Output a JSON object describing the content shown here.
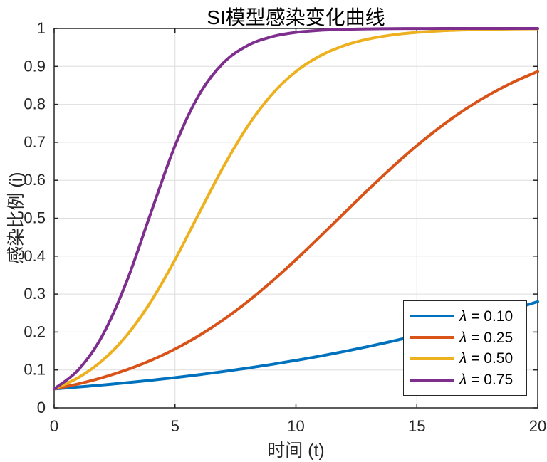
{
  "page": {
    "background": "#ffffff"
  },
  "chart_data": {
    "type": "line",
    "title": "SI模型感染变化曲线",
    "xlabel": "时间 (t)",
    "ylabel": "感染比例 (i)",
    "xlim": [
      0,
      20
    ],
    "ylim": [
      0,
      1
    ],
    "x_ticks": [
      0,
      5,
      10,
      15,
      20
    ],
    "x_tick_labels": [
      "0",
      "5",
      "10",
      "15",
      "20"
    ],
    "y_ticks": [
      0,
      0.1,
      0.2,
      0.3,
      0.4,
      0.5,
      0.6,
      0.7,
      0.8,
      0.9,
      1
    ],
    "y_tick_labels": [
      "0",
      "0.1",
      "0.2",
      "0.3",
      "0.4",
      "0.5",
      "0.6",
      "0.7",
      "0.8",
      "0.9",
      "1"
    ],
    "grid": true,
    "axis_color": "#262626",
    "grid_color": "#dedede",
    "tick_label_color": "#262626",
    "x": [
      0,
      1,
      2,
      3,
      4,
      5,
      6,
      7,
      8,
      9,
      10,
      11,
      12,
      13,
      14,
      15,
      16,
      17,
      18,
      19,
      20
    ],
    "series": [
      {
        "name": "λ = 0.10",
        "lambda": 0.1,
        "color": "#0072BD",
        "values": [
          0.05,
          0.055,
          0.0604,
          0.0663,
          0.0728,
          0.0798,
          0.0875,
          0.0958,
          0.1049,
          0.1146,
          0.1252,
          0.1365,
          0.1488,
          0.1619,
          0.1759,
          0.1909,
          0.2068,
          0.2237,
          0.2415,
          0.2603,
          0.28
        ]
      },
      {
        "name": "λ = 0.25",
        "lambda": 0.25,
        "color": "#D95319",
        "values": [
          0.05,
          0.0633,
          0.0798,
          0.1003,
          0.1252,
          0.1552,
          0.1909,
          0.2325,
          0.28,
          0.333,
          0.3907,
          0.4515,
          0.5139,
          0.5758,
          0.6354,
          0.6912,
          0.7418,
          0.7868,
          0.8257,
          0.8588,
          0.8865
        ]
      },
      {
        "name": "λ = 0.50",
        "lambda": 0.5,
        "color": "#EDB120",
        "values": [
          0.05,
          0.0798,
          0.1252,
          0.1909,
          0.28,
          0.3907,
          0.5139,
          0.6354,
          0.7418,
          0.8257,
          0.8865,
          0.9279,
          0.955,
          0.9722,
          0.983,
          0.9896,
          0.9937,
          0.9961,
          0.9977,
          0.9986,
          0.9991
        ]
      },
      {
        "name": "λ = 0.75",
        "lambda": 0.75,
        "color": "#7E2F8E",
        "values": [
          0.05,
          0.1003,
          0.1909,
          0.333,
          0.5139,
          0.6912,
          0.8257,
          0.9093,
          0.955,
          0.9782,
          0.9896,
          0.9951,
          0.9977,
          0.9989,
          0.9995,
          0.9998,
          0.9999,
          0.9999,
          1,
          1,
          1
        ]
      }
    ],
    "legend": {
      "position": "lower-right",
      "items": [
        {
          "symbol": "λ",
          "rest": " = 0.10"
        },
        {
          "symbol": "λ",
          "rest": " = 0.25"
        },
        {
          "symbol": "λ",
          "rest": " = 0.50"
        },
        {
          "symbol": "λ",
          "rest": " = 0.75"
        }
      ]
    }
  }
}
